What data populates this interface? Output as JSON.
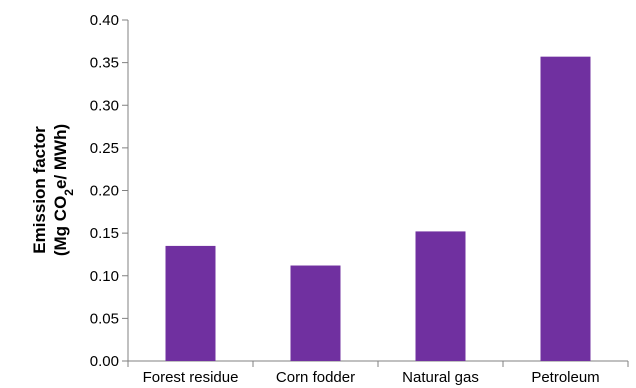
{
  "chart_data": {
    "type": "bar",
    "categories": [
      "Forest residue",
      "Corn fodder",
      "Natural gas",
      "Petroleum"
    ],
    "values": [
      0.135,
      0.112,
      0.152,
      0.357
    ],
    "title": "",
    "xlabel": "",
    "ylabel": {
      "line1": "Emission factor",
      "line2_prefix": "(Mg CO",
      "line2_subscript": "2",
      "line2_suffix": "e/ MWh)"
    },
    "ylim": [
      0,
      0.4
    ],
    "yticks": [
      "0.00",
      "0.05",
      "0.10",
      "0.15",
      "0.20",
      "0.25",
      "0.30",
      "0.35",
      "0.40"
    ],
    "grid": false,
    "legend": "none",
    "bar_color": "#7030a0",
    "axis_color": "#808080"
  }
}
